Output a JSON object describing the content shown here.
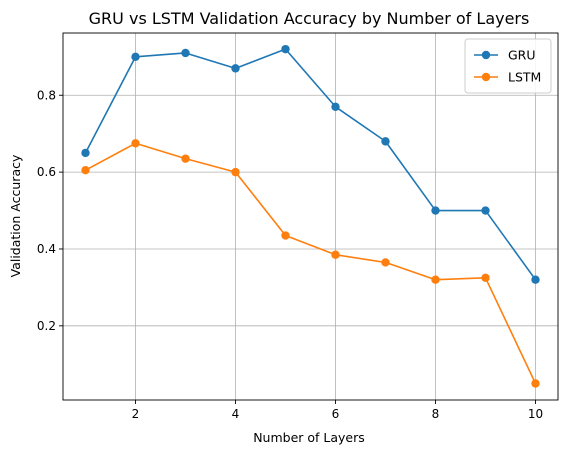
{
  "chart_data": {
    "type": "line",
    "title": "GRU vs LSTM Validation Accuracy by Number of Layers",
    "xlabel": "Number of Layers",
    "ylabel": "Validation Accuracy",
    "xlim": [
      0.55,
      10.45
    ],
    "ylim": [
      0.007,
      0.962
    ],
    "x_ticks": [
      2,
      4,
      6,
      8,
      10
    ],
    "y_ticks": [
      0.2,
      0.4,
      0.6,
      0.8
    ],
    "grid": true,
    "legend_position": "top-right",
    "x": [
      1,
      2,
      3,
      4,
      5,
      6,
      7,
      8,
      9,
      10
    ],
    "series": [
      {
        "name": "GRU",
        "color": "#1f77b4",
        "values": [
          0.65,
          0.9,
          0.91,
          0.87,
          0.92,
          0.77,
          0.68,
          0.5,
          0.5,
          0.32
        ]
      },
      {
        "name": "LSTM",
        "color": "#ff7f0e",
        "values": [
          0.605,
          0.675,
          0.635,
          0.6,
          0.435,
          0.385,
          0.365,
          0.32,
          0.325,
          0.05
        ]
      }
    ]
  }
}
